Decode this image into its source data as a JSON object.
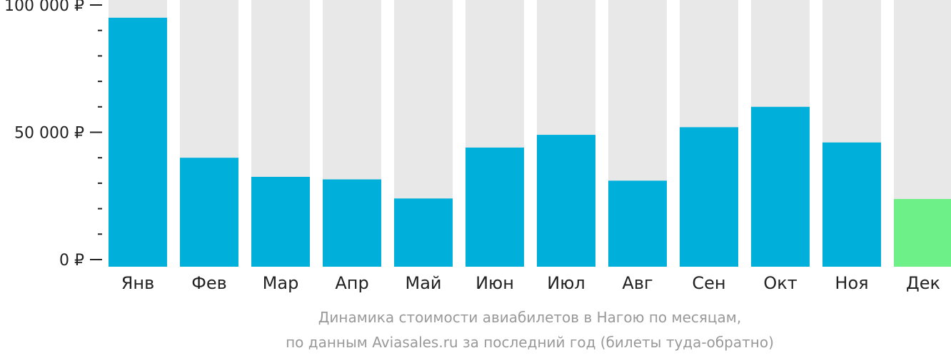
{
  "chart_data": {
    "type": "bar",
    "categories": [
      "Янв",
      "Фев",
      "Мар",
      "Апр",
      "Май",
      "Июн",
      "Июл",
      "Авг",
      "Сен",
      "Окт",
      "Ноя",
      "Дек"
    ],
    "values": [
      95000,
      40000,
      32500,
      31500,
      24000,
      44000,
      49000,
      31000,
      52000,
      60000,
      46000,
      23800
    ],
    "highlight_index": 11,
    "ylim": [
      0,
      100000
    ],
    "yticks_major": [
      0,
      50000,
      100000
    ],
    "ytick_labels": [
      "0 ₽",
      "50 000 ₽",
      "100 000 ₽"
    ],
    "yticks_minor_step": 10000,
    "grid": false,
    "legend": "none",
    "caption_line1": "Динамика стоимости авиабилетов в Нагою по месяцам,",
    "caption_line2": "по данным Aviasales.ru за последний год (билеты туда-обратно)",
    "colors": {
      "bar": "#00b0db",
      "bar_highlight": "#6df087",
      "bar_background": "#e8e8e8",
      "axis": "#222222",
      "text": "#222222",
      "caption": "#999999"
    }
  }
}
